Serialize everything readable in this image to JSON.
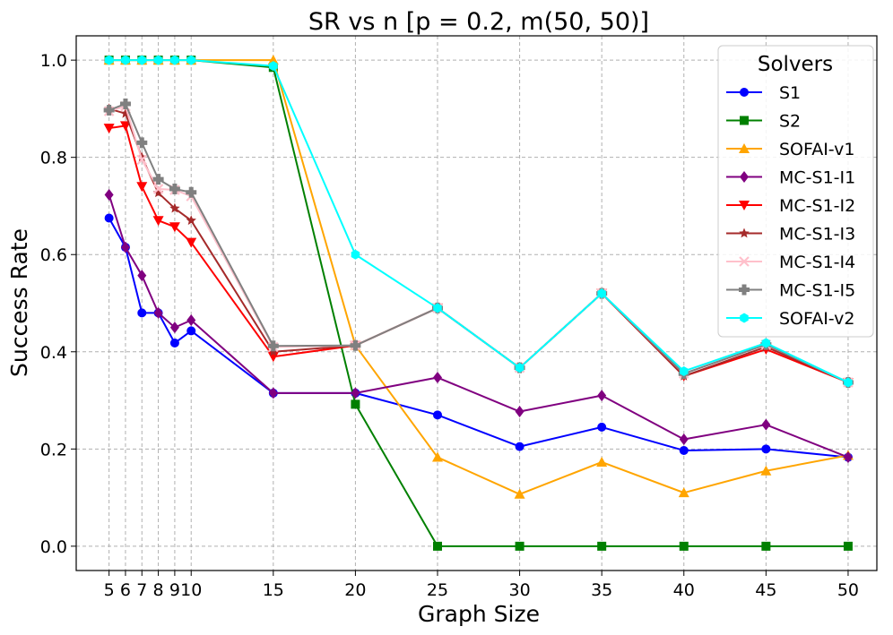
{
  "chart_data": {
    "type": "line",
    "title": "SR vs n [p = 0.2, m(50, 50)]",
    "xlabel": "Graph Size",
    "ylabel": "Success Rate",
    "x": [
      5,
      6,
      7,
      8,
      9,
      10,
      15,
      20,
      25,
      30,
      35,
      40,
      45,
      50
    ],
    "xticks": [
      "5",
      "6",
      "7",
      "8",
      "9",
      "10",
      "15",
      "20",
      "25",
      "30",
      "35",
      "40",
      "45",
      "50"
    ],
    "yticks": [
      "0.0",
      "0.2",
      "0.4",
      "0.6",
      "0.8",
      "1.0"
    ],
    "ylim": [
      -0.05,
      1.05
    ],
    "grid": true,
    "legend_title": "Solvers",
    "legend_position": "top-right",
    "series": [
      {
        "name": "S1",
        "color": "#0000ff",
        "marker": "circle",
        "values": [
          0.675,
          0.615,
          0.48,
          0.48,
          0.418,
          0.443,
          0.315,
          0.315,
          0.27,
          0.205,
          0.245,
          0.197,
          0.2,
          0.183
        ]
      },
      {
        "name": "S2",
        "color": "#008000",
        "marker": "square",
        "values": [
          1.0,
          1.0,
          1.0,
          1.0,
          1.0,
          1.0,
          0.985,
          0.292,
          0.0,
          0.0,
          0.0,
          0.0,
          0.0,
          0.0
        ]
      },
      {
        "name": "SOFAI-v1",
        "color": "#ffa500",
        "marker": "triangle-up",
        "values": [
          1.0,
          1.0,
          1.0,
          1.0,
          1.0,
          1.0,
          1.0,
          0.413,
          0.183,
          0.107,
          0.173,
          0.11,
          0.155,
          0.187
        ]
      },
      {
        "name": "MC-S1-I1",
        "color": "#800080",
        "marker": "diamond",
        "values": [
          0.723,
          0.615,
          0.557,
          0.48,
          0.45,
          0.465,
          0.315,
          0.315,
          0.347,
          0.277,
          0.31,
          0.22,
          0.25,
          0.183
        ]
      },
      {
        "name": "MC-S1-I2",
        "color": "#ff0000",
        "marker": "triangle-down",
        "values": [
          0.86,
          0.865,
          0.74,
          0.67,
          0.657,
          0.625,
          0.39,
          0.413,
          0.49,
          0.367,
          0.52,
          0.35,
          0.405,
          0.337
        ]
      },
      {
        "name": "MC-S1-I3",
        "color": "#a52a2a",
        "marker": "star",
        "values": [
          0.9,
          0.89,
          0.8,
          0.727,
          0.695,
          0.67,
          0.4,
          0.413,
          0.49,
          0.367,
          0.52,
          0.35,
          0.41,
          0.337
        ]
      },
      {
        "name": "MC-S1-I4",
        "color": "#ffc0cb",
        "marker": "x",
        "values": [
          0.895,
          0.905,
          0.795,
          0.735,
          0.733,
          0.72,
          0.41,
          0.413,
          0.49,
          0.367,
          0.52,
          0.355,
          0.415,
          0.337
        ]
      },
      {
        "name": "MC-S1-I5",
        "color": "#808080",
        "marker": "plus",
        "values": [
          0.897,
          0.91,
          0.83,
          0.755,
          0.735,
          0.728,
          0.412,
          0.413,
          0.49,
          0.367,
          0.52,
          0.355,
          0.415,
          0.337
        ]
      },
      {
        "name": "SOFAI-v2",
        "color": "#00ffff",
        "marker": "hexagon",
        "values": [
          1.0,
          1.0,
          1.0,
          1.0,
          1.0,
          1.0,
          0.988,
          0.6,
          0.49,
          0.367,
          0.52,
          0.36,
          0.418,
          0.337
        ]
      }
    ]
  }
}
